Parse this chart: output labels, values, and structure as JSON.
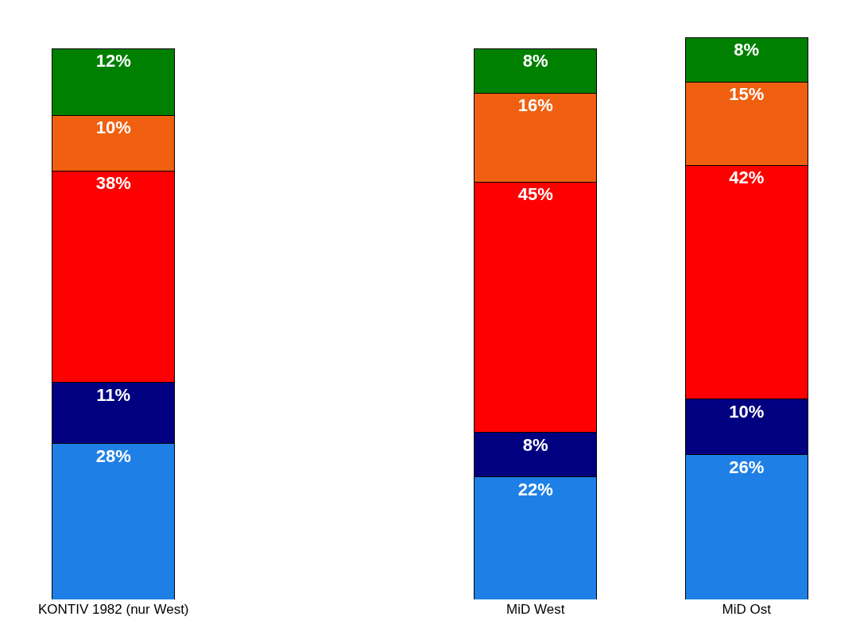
{
  "chart_data": {
    "type": "bar",
    "stacked": true,
    "categories": [
      "KONTIV 1982 (nur West)",
      null,
      "MiD West",
      "MiD Ost"
    ],
    "series": [
      {
        "color": "#1e80e6",
        "values": [
          28,
          null,
          22,
          26
        ],
        "value_labels": [
          "28%",
          null,
          "22%",
          "26%"
        ]
      },
      {
        "color": "#000080",
        "values": [
          11,
          null,
          8,
          10
        ],
        "value_labels": [
          "11%",
          null,
          "8%",
          "10%"
        ]
      },
      {
        "color": "#ff0000",
        "values": [
          38,
          null,
          45,
          42
        ],
        "value_labels": [
          "38%",
          null,
          "45%",
          "42%"
        ]
      },
      {
        "color": "#f06010",
        "values": [
          10,
          null,
          16,
          15
        ],
        "value_labels": [
          "10%",
          null,
          "16%",
          "15%"
        ]
      },
      {
        "color": "#008000",
        "values": [
          12,
          null,
          8,
          8
        ],
        "value_labels": [
          "12%",
          null,
          "8%",
          "8%"
        ]
      }
    ]
  }
}
